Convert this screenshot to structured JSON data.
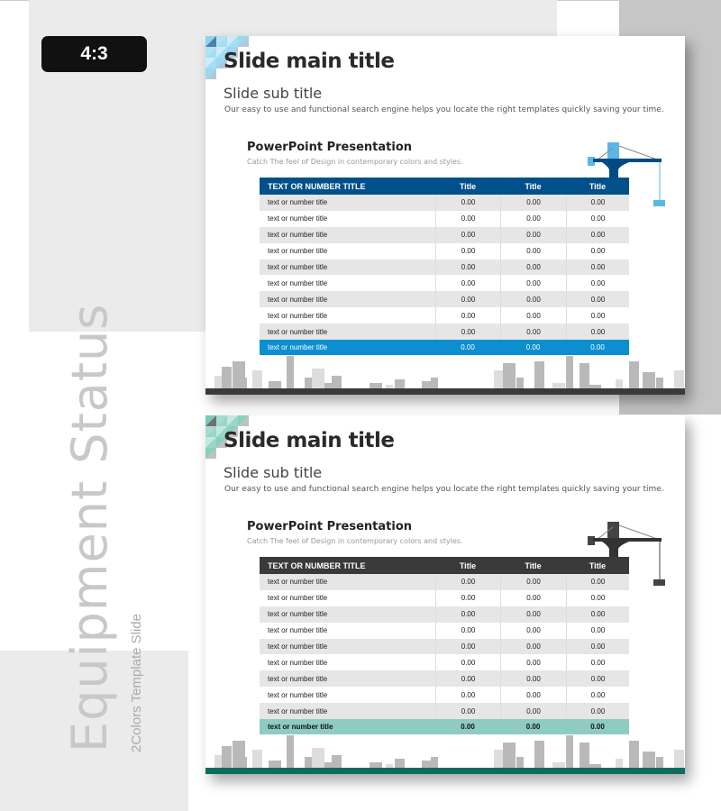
{
  "badge": "4:3",
  "side": {
    "title": "Equipment Status",
    "subtitle": "2Colors Template Slide"
  },
  "slides": [
    {
      "theme": {
        "accent": "#004a86",
        "header": "#00508c",
        "footer": "#0b8fd0",
        "ground": "#3a3a3a",
        "tri": "#7fcfee",
        "crane": "#5bb8e6"
      },
      "main_title": "Slide main title",
      "sub_title": "Slide sub title",
      "description": "Our easy to use and functional search engine helps you locate the right templates quickly  saving your time.",
      "section_title": "PowerPoint Presentation",
      "section_sub": "Catch The feel of Design in contemporary colors and styles.",
      "table": {
        "headers": [
          "TEXT OR NUMBER TITLE",
          "Title",
          "Title",
          "Title"
        ],
        "rows": [
          [
            "text or number title",
            "0.00",
            "0.00",
            "0.00"
          ],
          [
            "text or number title",
            "0.00",
            "0.00",
            "0.00"
          ],
          [
            "text or number title",
            "0.00",
            "0.00",
            "0.00"
          ],
          [
            "text or number title",
            "0.00",
            "0.00",
            "0.00"
          ],
          [
            "text or number title",
            "0.00",
            "0.00",
            "0.00"
          ],
          [
            "text or number title",
            "0.00",
            "0.00",
            "0.00"
          ],
          [
            "text or number title",
            "0.00",
            "0.00",
            "0.00"
          ],
          [
            "text or number title",
            "0.00",
            "0.00",
            "0.00"
          ],
          [
            "text or number title",
            "0.00",
            "0.00",
            "0.00"
          ]
        ],
        "footer": [
          "text or number title",
          "0.00",
          "0.00",
          "0.00"
        ]
      }
    },
    {
      "theme": {
        "accent": "#333333",
        "header": "#3a3a3a",
        "footer": "#8ecbc3",
        "ground": "#0f6b5e",
        "tri": "#6cc4b3",
        "crane": "#444444"
      },
      "main_title": "Slide main title",
      "sub_title": "Slide sub title",
      "description": "Our easy to use and functional search engine helps you locate the right templates quickly  saving your time.",
      "section_title": "PowerPoint Presentation",
      "section_sub": "Catch The feel of Design in contemporary colors and styles.",
      "table": {
        "headers": [
          "TEXT OR NUMBER TITLE",
          "Title",
          "Title",
          "Title"
        ],
        "rows": [
          [
            "text or number title",
            "0.00",
            "0.00",
            "0.00"
          ],
          [
            "text or number title",
            "0.00",
            "0.00",
            "0.00"
          ],
          [
            "text or number title",
            "0.00",
            "0.00",
            "0.00"
          ],
          [
            "text or number title",
            "0.00",
            "0.00",
            "0.00"
          ],
          [
            "text or number title",
            "0.00",
            "0.00",
            "0.00"
          ],
          [
            "text or number title",
            "0.00",
            "0.00",
            "0.00"
          ],
          [
            "text or number title",
            "0.00",
            "0.00",
            "0.00"
          ],
          [
            "text or number title",
            "0.00",
            "0.00",
            "0.00"
          ],
          [
            "text or number title",
            "0.00",
            "0.00",
            "0.00"
          ]
        ],
        "footer": [
          "text or number title",
          "0.00",
          "0.00",
          "0.00"
        ]
      }
    }
  ]
}
